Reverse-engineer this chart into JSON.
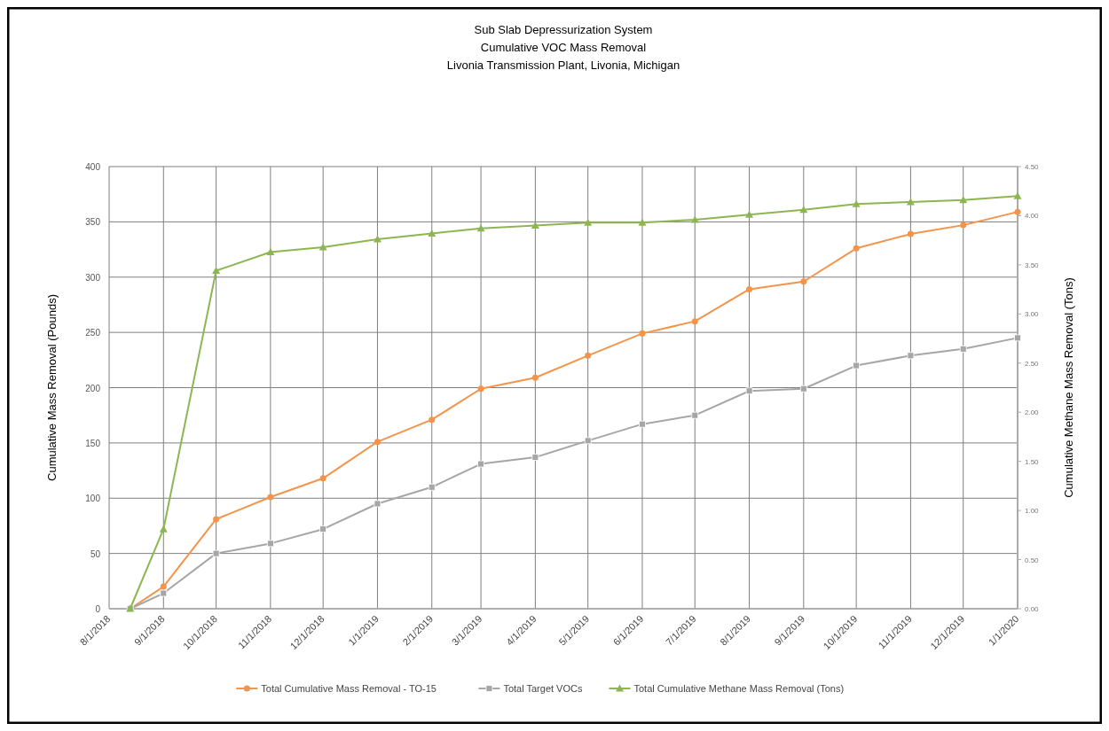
{
  "chart_data": {
    "type": "line",
    "title": "Sub Slab Depressurization System\nCumulative VOC Mass Removal\nLivonia Transmission Plant, Livonia, Michigan",
    "ylabel": "Cumulative Mass Removal (Pounds)",
    "y2label": "Cumulative Methane Mass Removal (Tons)",
    "x": [
      "2018-08-13",
      "2018-09-01",
      "2018-10-01",
      "2018-11-01",
      "2018-12-01",
      "2019-01-01",
      "2019-02-01",
      "2019-03-01",
      "2019-04-01",
      "2019-05-01",
      "2019-06-01",
      "2019-07-01",
      "2019-08-01",
      "2019-09-01",
      "2019-10-01",
      "2019-11-01",
      "2019-12-01",
      "2020-01-01"
    ],
    "series": [
      {
        "name": "Total Cumulative Mass Removal - TO-15",
        "color": "#f4944a",
        "marker": "circle",
        "values": [
          0,
          20,
          81,
          101,
          118,
          151,
          171,
          199,
          209,
          229,
          249,
          260,
          289,
          296,
          326,
          339,
          347,
          359
        ]
      },
      {
        "name": "Total Target VOCs",
        "color": "#a6a6a6",
        "marker": "square",
        "values": [
          0,
          14,
          50,
          59,
          72,
          95,
          110,
          131,
          137,
          152,
          167,
          175,
          197,
          199,
          220,
          229,
          235,
          245
        ]
      },
      {
        "name": "Total Cumulative Methane Mass Removal (Tons)",
        "color": "#8db653",
        "marker": "triangle",
        "axis": "y2",
        "values": [
          0,
          0.81,
          3.44,
          3.63,
          3.68,
          3.76,
          3.82,
          3.87,
          3.9,
          3.93,
          3.93,
          3.96,
          4.01,
          4.06,
          4.12,
          4.14,
          4.16,
          4.2
        ]
      }
    ],
    "xlim": [
      "2018-08-01",
      "2020-01-01"
    ],
    "xticks": [
      {
        "value": "2018-08-01",
        "label": "8/1/2018"
      },
      {
        "value": "2018-09-01",
        "label": "9/1/2018"
      },
      {
        "value": "2018-10-01",
        "label": "10/1/2018"
      },
      {
        "value": "2018-11-01",
        "label": "11/1/2018"
      },
      {
        "value": "2018-12-01",
        "label": "12/1/2018"
      },
      {
        "value": "2019-01-01",
        "label": "1/1/2019"
      },
      {
        "value": "2019-02-01",
        "label": "2/1/2019"
      },
      {
        "value": "2019-03-01",
        "label": "3/1/2019"
      },
      {
        "value": "2019-04-01",
        "label": "4/1/2019"
      },
      {
        "value": "2019-05-01",
        "label": "5/1/2019"
      },
      {
        "value": "2019-06-01",
        "label": "6/1/2019"
      },
      {
        "value": "2019-07-01",
        "label": "7/1/2019"
      },
      {
        "value": "2019-08-01",
        "label": "8/1/2019"
      },
      {
        "value": "2019-09-01",
        "label": "9/1/2019"
      },
      {
        "value": "2019-10-01",
        "label": "10/1/2019"
      },
      {
        "value": "2019-11-01",
        "label": "11/1/2019"
      },
      {
        "value": "2019-12-01",
        "label": "12/1/2019"
      },
      {
        "value": "2020-01-01",
        "label": "1/1/2020"
      }
    ],
    "ylim": [
      0,
      400
    ],
    "yticks": [
      0,
      50,
      100,
      150,
      200,
      250,
      300,
      350,
      400
    ],
    "y2lim": [
      0,
      4.5
    ],
    "y2ticks": [
      {
        "value": 0,
        "label": "0.00"
      },
      {
        "value": 0.5,
        "label": "0.50"
      },
      {
        "value": 1,
        "label": "1.00"
      },
      {
        "value": 1.5,
        "label": "1.50"
      },
      {
        "value": 2,
        "label": "2.00"
      },
      {
        "value": 2.5,
        "label": "2.50"
      },
      {
        "value": 3,
        "label": "3.00"
      },
      {
        "value": 3.5,
        "label": "3.50"
      },
      {
        "value": 4,
        "label": "4.00"
      },
      {
        "value": 4.5,
        "label": "4.50"
      }
    ],
    "grid": true,
    "legend": "bottom",
    "line_style": "solid"
  }
}
